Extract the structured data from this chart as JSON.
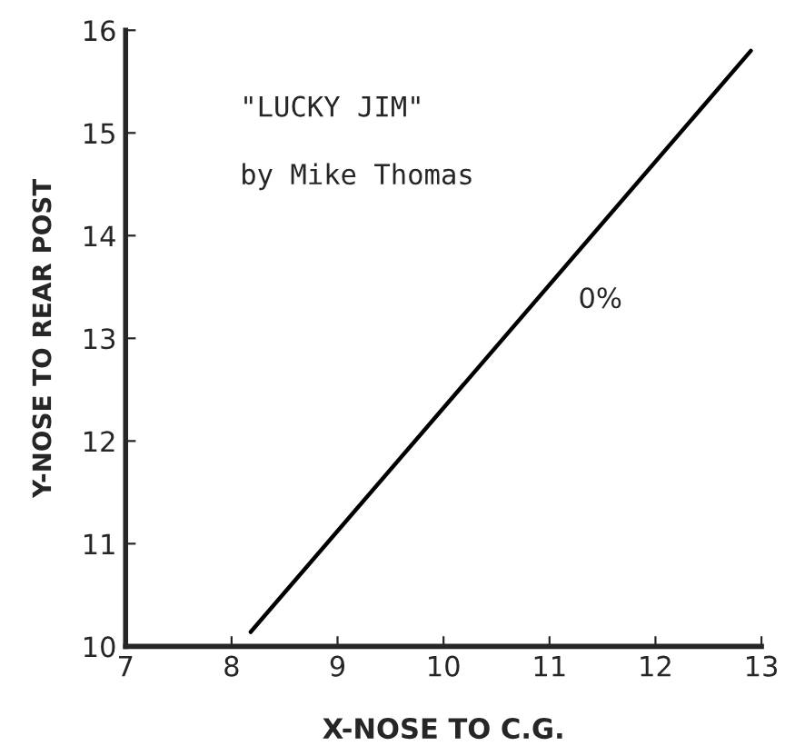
{
  "chart_data": {
    "type": "line",
    "title": "\"LUCKY JIM\"",
    "subtitle": "by Mike Thomas",
    "xlabel": "X-NOSE TO C.G.",
    "ylabel": "Y-NOSE TO REAR POST",
    "series": [
      {
        "x": [
          8.18,
          12.9
        ],
        "values": [
          10.14,
          15.8
        ],
        "color": "#000000"
      }
    ],
    "annotations": [
      {
        "text": "0%",
        "x": 11.2,
        "y": 13.6
      }
    ],
    "xlim": [
      7,
      13
    ],
    "ylim": [
      10,
      16
    ],
    "xticks": [
      7,
      8,
      9,
      10,
      11,
      12,
      13
    ],
    "yticks": [
      10,
      11,
      12,
      13,
      14,
      15,
      16
    ],
    "grid": false,
    "legend": false,
    "marker": "none",
    "line_style": "solid"
  }
}
